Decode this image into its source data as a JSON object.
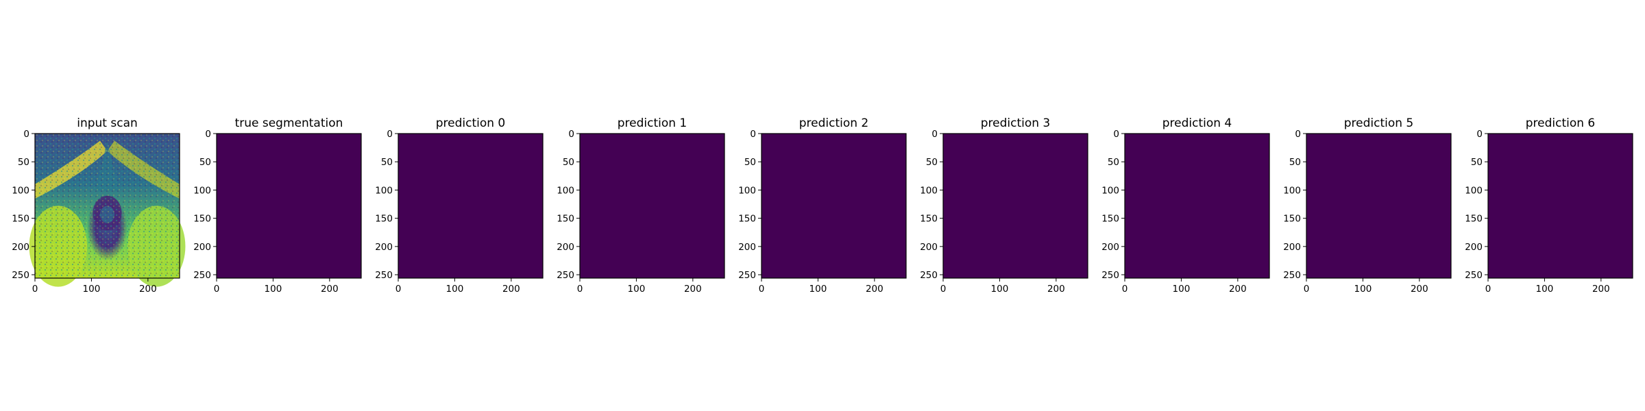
{
  "chart_data": {
    "type": "heatmap",
    "colormap": "viridis",
    "panels": [
      {
        "title": "input scan",
        "content": "grayscale MRI scan rendered in viridis colormap",
        "xlim": [
          0,
          256
        ],
        "ylim": [
          256,
          0
        ],
        "xticks": [
          0,
          100,
          200
        ],
        "yticks": [
          0,
          50,
          100,
          150,
          200,
          250
        ]
      },
      {
        "title": "true segmentation",
        "content": "uniform mask",
        "fill_value": 0,
        "fill_color": "#440154",
        "xlim": [
          0,
          256
        ],
        "ylim": [
          256,
          0
        ],
        "xticks": [
          0,
          100,
          200
        ],
        "yticks": [
          0,
          50,
          100,
          150,
          200,
          250
        ]
      },
      {
        "title": "prediction 0",
        "content": "uniform mask",
        "fill_value": 0,
        "fill_color": "#440154",
        "xlim": [
          0,
          256
        ],
        "ylim": [
          256,
          0
        ],
        "xticks": [
          0,
          100,
          200
        ],
        "yticks": [
          0,
          50,
          100,
          150,
          200,
          250
        ]
      },
      {
        "title": "prediction 1",
        "content": "uniform mask",
        "fill_value": 0,
        "fill_color": "#440154",
        "xlim": [
          0,
          256
        ],
        "ylim": [
          256,
          0
        ],
        "xticks": [
          0,
          100,
          200
        ],
        "yticks": [
          0,
          50,
          100,
          150,
          200,
          250
        ]
      },
      {
        "title": "prediction 2",
        "content": "uniform mask",
        "fill_value": 0,
        "fill_color": "#440154",
        "xlim": [
          0,
          256
        ],
        "ylim": [
          256,
          0
        ],
        "xticks": [
          0,
          100,
          200
        ],
        "yticks": [
          0,
          50,
          100,
          150,
          200,
          250
        ]
      },
      {
        "title": "prediction 3",
        "content": "uniform mask",
        "fill_value": 0,
        "fill_color": "#440154",
        "xlim": [
          0,
          256
        ],
        "ylim": [
          256,
          0
        ],
        "xticks": [
          0,
          100,
          200
        ],
        "yticks": [
          0,
          50,
          100,
          150,
          200,
          250
        ]
      },
      {
        "title": "prediction 4",
        "content": "uniform mask",
        "fill_value": 0,
        "fill_color": "#440154",
        "xlim": [
          0,
          256
        ],
        "ylim": [
          256,
          0
        ],
        "xticks": [
          0,
          100,
          200
        ],
        "yticks": [
          0,
          50,
          100,
          150,
          200,
          250
        ]
      },
      {
        "title": "prediction 5",
        "content": "uniform mask",
        "fill_value": 0,
        "fill_color": "#440154",
        "xlim": [
          0,
          256
        ],
        "ylim": [
          256,
          0
        ],
        "xticks": [
          0,
          100,
          200
        ],
        "yticks": [
          0,
          50,
          100,
          150,
          200,
          250
        ]
      },
      {
        "title": "prediction 6",
        "content": "uniform mask",
        "fill_value": 0,
        "fill_color": "#440154",
        "xlim": [
          0,
          256
        ],
        "ylim": [
          256,
          0
        ],
        "xticks": [
          0,
          100,
          200
        ],
        "yticks": [
          0,
          50,
          100,
          150,
          200,
          250
        ]
      }
    ]
  }
}
